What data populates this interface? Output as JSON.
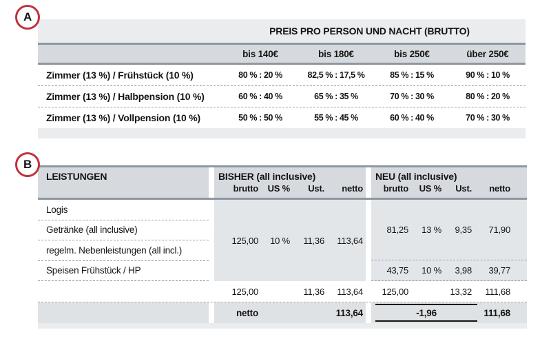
{
  "colors": {
    "badge_ring": "#c0323e",
    "band_border": "#8d97a1",
    "container_bg": "#eaecee",
    "header_band_bg": "#d6dade",
    "data_block_bg": "#e3e6e9",
    "final_band_bg": "#dfe2e5"
  },
  "badges": {
    "a": "A",
    "b": "B"
  },
  "table_a": {
    "title": "PREIS PRO PERSON UND NACHT (BRUTTO)",
    "columns": [
      "bis 140€",
      "bis 180€",
      "bis 250€",
      "über 250€"
    ],
    "rows": [
      {
        "label": "Zimmer (13 %) / Frühstück (10 %)",
        "values": [
          "80 % : 20 %",
          "82,5 % : 17,5 %",
          "85 % : 15 %",
          "90 % : 10 %"
        ]
      },
      {
        "label": "Zimmer (13 %) / Halbpension (10 %)",
        "values": [
          "60 % : 40 %",
          "65 % : 35 %",
          "70 % : 30 %",
          "80 % : 20 %"
        ]
      },
      {
        "label": "Zimmer (13 %) / Vollpension (10 %)",
        "values": [
          "50 % : 50 %",
          "55 % : 45 %",
          "60 % : 40 %",
          "70 % : 30 %"
        ]
      }
    ]
  },
  "table_b": {
    "col_leistungen": "LEISTUNGEN",
    "bisher_title": "BISHER (all inclusive)",
    "neu_title": "NEU (all inclusive)",
    "subcols": [
      "brutto",
      "US %",
      "Ust.",
      "netto"
    ],
    "services": [
      "Logis",
      "Getränke (all inclusive)",
      "regelm. Nebenleistungen (all incl.)",
      "Speisen Frühstück / HP"
    ],
    "bisher_group": [
      "125,00",
      "10 %",
      "11,36",
      "113,64"
    ],
    "neu_group": [
      "81,25",
      "13 %",
      "9,35",
      "71,90"
    ],
    "neu_speisen": [
      "43,75",
      "10 %",
      "3,98",
      "39,77"
    ],
    "sum_bisher": [
      "125,00",
      "",
      "11,36",
      "113,64"
    ],
    "sum_neu": [
      "125,00",
      "",
      "13,32",
      "111,68"
    ],
    "final_label": "netto",
    "final_bisher_netto": "113,64",
    "final_neu_diff": "-1,96",
    "final_neu_netto": "111,68"
  }
}
